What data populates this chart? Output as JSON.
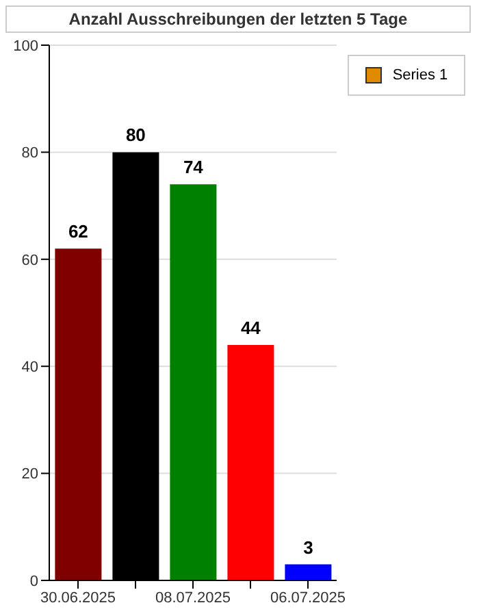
{
  "chart_data": {
    "type": "bar",
    "title": "Anzahl Ausschreibungen der letzten 5 Tage",
    "categories": [
      "30.06.2025",
      null,
      "08.07.2025",
      null,
      "06.07.2025"
    ],
    "series": [
      {
        "name": "Series 1",
        "color": "#e08a00",
        "values": [
          62,
          80,
          74,
          44,
          3
        ],
        "colors": [
          "#800000",
          "#000000",
          "#008000",
          "#ff0000",
          "#0000ff"
        ]
      }
    ],
    "ylim": [
      0,
      100
    ],
    "yticks": [
      0,
      20,
      40,
      60,
      80,
      100
    ],
    "grid": "y",
    "legend": "top right",
    "data_labels": true
  }
}
